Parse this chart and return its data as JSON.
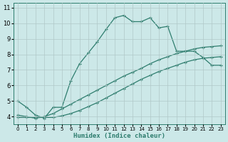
{
  "xlabel": "Humidex (Indice chaleur)",
  "background_color": "#cce8e8",
  "grid_color": "#b0c8c8",
  "line_color": "#2e7d6e",
  "xlim": [
    -0.5,
    23.5
  ],
  "ylim": [
    3.5,
    11.3
  ],
  "xticks": [
    0,
    1,
    2,
    3,
    4,
    5,
    6,
    7,
    8,
    9,
    10,
    11,
    12,
    13,
    14,
    15,
    16,
    17,
    18,
    19,
    20,
    21,
    22,
    23
  ],
  "yticks": [
    4,
    5,
    6,
    7,
    8,
    9,
    10,
    11
  ],
  "line1_x": [
    0,
    1,
    2,
    3,
    4,
    5,
    6,
    7,
    8,
    9,
    10,
    11,
    12,
    13,
    14,
    15,
    16,
    17,
    18,
    19,
    20,
    21,
    22,
    23
  ],
  "line1_y": [
    5.0,
    4.6,
    4.1,
    3.9,
    4.6,
    4.6,
    6.3,
    7.4,
    8.1,
    8.8,
    9.6,
    10.35,
    10.5,
    10.1,
    10.1,
    10.35,
    9.7,
    9.8,
    8.2,
    8.2,
    8.2,
    7.8,
    7.3,
    7.3
  ],
  "line2_x": [
    0,
    1,
    2,
    3,
    4,
    5,
    6,
    7,
    8,
    9,
    10,
    11,
    12,
    13,
    14,
    15,
    16,
    17,
    18,
    19,
    20,
    21,
    22,
    23
  ],
  "line2_y": [
    4.1,
    4.0,
    3.9,
    4.0,
    4.2,
    4.5,
    4.8,
    5.1,
    5.4,
    5.7,
    6.0,
    6.3,
    6.6,
    6.85,
    7.1,
    7.4,
    7.65,
    7.85,
    8.05,
    8.2,
    8.35,
    8.45,
    8.5,
    8.55
  ],
  "line3_x": [
    0,
    1,
    2,
    3,
    4,
    5,
    6,
    7,
    8,
    9,
    10,
    11,
    12,
    13,
    14,
    15,
    16,
    17,
    18,
    19,
    20,
    21,
    22,
    23
  ],
  "line3_y": [
    3.95,
    3.95,
    3.95,
    3.95,
    3.95,
    4.05,
    4.2,
    4.4,
    4.65,
    4.9,
    5.2,
    5.5,
    5.8,
    6.1,
    6.4,
    6.65,
    6.9,
    7.1,
    7.3,
    7.5,
    7.65,
    7.75,
    7.8,
    7.85
  ]
}
